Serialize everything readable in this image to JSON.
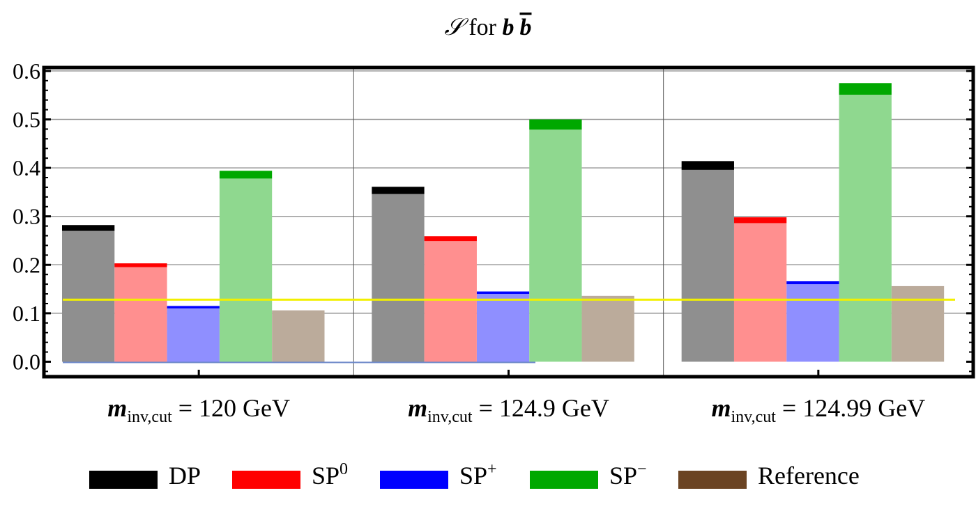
{
  "chart_data": {
    "type": "bar",
    "title_parts": {
      "symbol": "𝒮",
      "mid": " for ",
      "b": "b",
      "bbar": "b"
    },
    "title": "𝒮 for b b̄",
    "ylim": [
      -0.03,
      0.62
    ],
    "yticks": [
      "0.0",
      "0.1",
      "0.2",
      "0.3",
      "0.4",
      "0.5",
      "0.6"
    ],
    "ytick_values": [
      0.0,
      0.1,
      0.2,
      0.3,
      0.4,
      0.5,
      0.6
    ],
    "reference_line": 0.128,
    "groups": [
      {
        "var": "m",
        "sub": "inv,cut",
        "rest": " = 120  GeV",
        "label": "m_inv,cut = 120 GeV"
      },
      {
        "var": "m",
        "sub": "inv,cut",
        "rest": " = 124.9  GeV",
        "label": "m_inv,cut = 124.9 GeV"
      },
      {
        "var": "m",
        "sub": "inv,cut",
        "rest": " = 124.99  GeV",
        "label": "m_inv,cut = 124.99 GeV"
      }
    ],
    "series": [
      {
        "name": "DP",
        "base": "",
        "sup": "",
        "color": "#000000",
        "light": "#8f8f8f",
        "values": [
          0.282,
          0.361,
          0.414
        ],
        "lower": [
          0.27,
          0.346,
          0.396
        ]
      },
      {
        "name": "SP0",
        "base": "SP",
        "sup": "0",
        "color": "#ff0000",
        "light": "#ff8f8f",
        "values": [
          0.203,
          0.259,
          0.298
        ],
        "lower": [
          0.195,
          0.249,
          0.286
        ]
      },
      {
        "name": "SP+",
        "base": "SP",
        "sup": "+",
        "color": "#0000ff",
        "light": "#8f8fff",
        "values": [
          0.115,
          0.145,
          0.166
        ],
        "lower": [
          0.11,
          0.14,
          0.16
        ]
      },
      {
        "name": "SP−",
        "base": "SP",
        "sup": "−",
        "color": "#00a800",
        "light": "#8fd88f",
        "values": [
          0.394,
          0.5,
          0.575
        ],
        "lower": [
          0.378,
          0.479,
          0.551
        ]
      },
      {
        "name": "Reference",
        "base": "",
        "sup": "",
        "color": "#6b4423",
        "light": "#bbab9b",
        "values": [
          0.106,
          0.136,
          0.156
        ],
        "lower": [
          0.106,
          0.136,
          0.156
        ]
      }
    ]
  }
}
